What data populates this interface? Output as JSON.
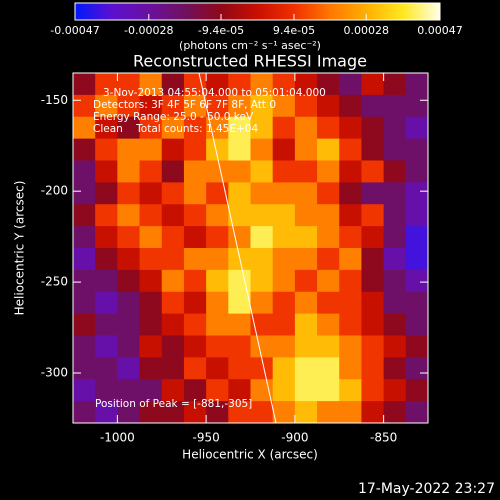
{
  "chart_data": {
    "type": "heatmap",
    "title": "Reconstructed RHESSI Image",
    "x_label": "Heliocentric X (arcsec)",
    "y_label": "Heliocentric Y (arcsec)",
    "annotations": [
      "3-Nov-2013 04:55:04.000 to 05:01:04.000",
      "Detectors: 3F 4F 5F 6F 7F 8F, Att 0",
      "Energy Range: 25.0 - 50.0 keV",
      "Clean    Total counts: 1.45E+04",
      "Position of Peak = [-881,-305]"
    ],
    "footer": "17-May-2022 23:27",
    "colorbar_label": "(photons cm⁻² s⁻¹ asec⁻²)",
    "zlim": [
      -0.00047,
      0.00047
    ],
    "zticks": [
      -0.00047,
      -0.00028,
      {
        "value": -9.4e-05,
        "label": "-9.4e-05"
      },
      {
        "value": 9.4e-05,
        "label": "9.4e-05"
      },
      0.00028,
      0.00047
    ],
    "colorscale": [
      "#0018ff",
      "#5a10d0",
      "#6a10a0",
      "#701060",
      "#900818",
      "#c81000",
      "#f03000",
      "#ff7800",
      "#ffb000",
      "#ffe820",
      "#ffffe8"
    ],
    "xlim": [
      -1025,
      -825
    ],
    "ylim": [
      -327.5,
      -135
    ],
    "xticks": [
      -1000,
      -950,
      -900,
      -850
    ],
    "yticks": [
      -300,
      -250,
      -200,
      -150
    ],
    "z": [
      [
        -0.0001,
        0.0001,
        0.0001,
        0.0002,
        -0.0001,
        0.0001,
        0,
        0.0001,
        0.0002,
        0.0001,
        0,
        -0.0001,
        -0.0002,
        0,
        -0.0001,
        -0.0002
      ],
      [
        0.0001,
        0.0002,
        0.0001,
        0,
        0.0001,
        0.0002,
        0.0001,
        0.0002,
        0.0003,
        0.0002,
        0.0001,
        0,
        -0.0001,
        -0.0002,
        -0.0002,
        -0.0002
      ],
      [
        0.0002,
        0,
        -0.0001,
        0.0001,
        0.0002,
        0.0001,
        0.0002,
        0.0004,
        0.0003,
        0.0001,
        0.0002,
        0.0001,
        0,
        -0.0001,
        -0.0002,
        -0.0003
      ],
      [
        -0.0001,
        0.0001,
        0.0002,
        0.0002,
        0,
        0.0001,
        0.0003,
        0.0004,
        0.0002,
        0,
        0.0002,
        0.0003,
        0.0001,
        -0.0001,
        -0.0002,
        -0.0002
      ],
      [
        -0.0002,
        0,
        0.0002,
        0.0001,
        -0.0001,
        0.0002,
        0.0002,
        0.0002,
        0.0003,
        0.0001,
        0.0001,
        0.0002,
        0,
        0.0001,
        -0.0001,
        -0.0002
      ],
      [
        -0.0002,
        -0.0001,
        0.0001,
        0,
        0.0001,
        0.0002,
        0.0001,
        0.0003,
        0.0002,
        0.0002,
        0.0002,
        0.0001,
        -0.0001,
        -0.0002,
        -0.0002,
        -0.0003
      ],
      [
        -0.0001,
        0.0001,
        0.0002,
        0.0001,
        0,
        0.0001,
        0.0002,
        0.0003,
        0.0003,
        0.0003,
        0.0002,
        0.0002,
        0,
        0.0001,
        -0.0002,
        -0.0003
      ],
      [
        -0.0002,
        0,
        0.0001,
        0.0002,
        0.0001,
        0,
        0.0001,
        0.0002,
        0.0004,
        0.0003,
        0.0003,
        0.0002,
        0.0001,
        0,
        -0.0002,
        -0.0004
      ],
      [
        -0.0003,
        -0.0001,
        0,
        0.0001,
        0.0001,
        0.0002,
        0.0002,
        0.0003,
        0.0003,
        0.0002,
        0.0002,
        0.0001,
        0.0002,
        -0.0001,
        -0.0003,
        -0.0004
      ],
      [
        -0.0002,
        -0.0002,
        -0.0001,
        0,
        0.0002,
        0.0001,
        0.0003,
        0.0004,
        0.0003,
        0.0002,
        0.0001,
        0.0002,
        0.0001,
        -0.0001,
        -0.0002,
        -0.0003
      ],
      [
        -0.0002,
        -0.0003,
        -0.0002,
        -0.0001,
        0.0001,
        0,
        0.0002,
        0.0004,
        0.0002,
        0.0001,
        0.0002,
        0.0001,
        0.0001,
        0,
        -0.0002,
        -0.0002
      ],
      [
        -0.0001,
        -0.0002,
        -0.0002,
        -0.0001,
        0,
        0.0001,
        0.0002,
        0.0002,
        0.0001,
        0.0001,
        0.0003,
        0.0002,
        0.0001,
        0,
        -0.0001,
        -0.0002
      ],
      [
        -0.0002,
        -0.0003,
        -0.0002,
        0,
        -0.0001,
        0,
        0.0001,
        0.0001,
        0.0002,
        0.0002,
        0.0003,
        0.0003,
        0.0002,
        0.0001,
        0,
        -0.0001
      ],
      [
        -0.0002,
        -0.0002,
        -0.0003,
        -0.0001,
        -0.0001,
        0.0001,
        0,
        0.0001,
        0.0001,
        0.0003,
        0.0004,
        0.0004,
        0.0002,
        0.0001,
        -0.0001,
        -0.0002
      ],
      [
        -0.0003,
        -0.0002,
        -0.0002,
        -0.0002,
        0,
        -0.0001,
        0.0001,
        0,
        0.0002,
        0.0003,
        0.0004,
        0.0004,
        0.0003,
        0.0001,
        0,
        -0.0001
      ],
      [
        -0.0002,
        -0.0003,
        -0.0002,
        -0.0001,
        -0.0001,
        0,
        -0.0001,
        0.0001,
        0.0001,
        0.0002,
        0.0003,
        0.0002,
        0.0002,
        0,
        -0.0001,
        -0.0002
      ]
    ]
  }
}
